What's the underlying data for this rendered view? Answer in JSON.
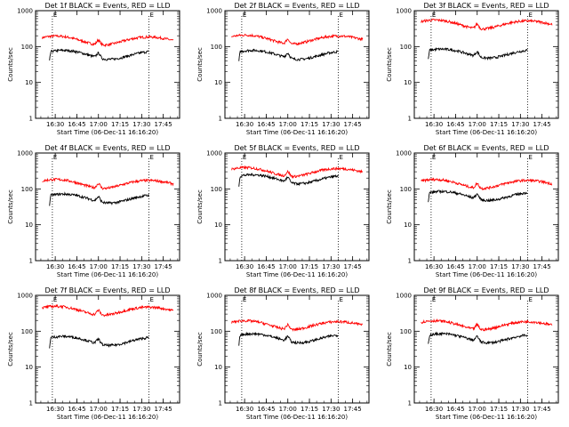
{
  "chart_data": [
    {
      "type": "line",
      "title": "Det 1f BLACK = Events, RED = LLD",
      "xlabel": "Start Time (06-Dec-11 16:16:20)",
      "ylabel": "Counts/sec",
      "x_ticks": [
        "16:30",
        "16:45",
        "17:00",
        "17:15",
        "17:30",
        "17:45"
      ],
      "y_ticks": [
        "1",
        "10",
        "100",
        "1000"
      ],
      "ylim": [
        1,
        1000
      ],
      "yscale": "log",
      "marker_labels": [
        "E",
        "E"
      ],
      "series": [
        {
          "color": "#ff0000",
          "level": 150,
          "start": "16:21",
          "end": "17:52"
        },
        {
          "color": "#000000",
          "level": 60,
          "start": "16:26",
          "end": "17:35"
        }
      ]
    },
    {
      "type": "line",
      "title": "Det 2f BLACK = Events, RED = LLD",
      "xlabel": "Start Time (06-Dec-11 16:16:20)",
      "ylabel": "Counts/sec",
      "x_ticks": [
        "16:30",
        "16:45",
        "17:00",
        "17:15",
        "17:30",
        "17:45"
      ],
      "y_ticks": [
        "1",
        "10",
        "100",
        "1000"
      ],
      "ylim": [
        1,
        1000
      ],
      "yscale": "log",
      "marker_labels": [
        "E",
        "E"
      ],
      "series": [
        {
          "color": "#ff0000",
          "level": 160,
          "start": "16:21",
          "end": "17:52"
        },
        {
          "color": "#000000",
          "level": 60,
          "start": "16:26",
          "end": "17:35"
        }
      ]
    },
    {
      "type": "line",
      "title": "Det 3f BLACK = Events, RED = LLD",
      "xlabel": "Start Time (06-Dec-11 16:16:20)",
      "ylabel": "Counts/sec",
      "x_ticks": [
        "16:30",
        "16:45",
        "17:00",
        "17:15",
        "17:30",
        "17:45"
      ],
      "y_ticks": [
        "1",
        "10",
        "100",
        "1000"
      ],
      "ylim": [
        1,
        1000
      ],
      "yscale": "log",
      "marker_labels": [
        "E",
        "E"
      ],
      "series": [
        {
          "color": "#ff0000",
          "level": 420,
          "start": "16:21",
          "end": "17:52"
        },
        {
          "color": "#000000",
          "level": 65,
          "start": "16:26",
          "end": "17:35"
        }
      ]
    },
    {
      "type": "line",
      "title": "Det 4f BLACK = Events, RED = LLD",
      "xlabel": "Start Time (06-Dec-11 16:16:20)",
      "ylabel": "Counts/sec",
      "x_ticks": [
        "16:30",
        "16:45",
        "17:00",
        "17:15",
        "17:30",
        "17:45"
      ],
      "y_ticks": [
        "1",
        "10",
        "100",
        "1000"
      ],
      "ylim": [
        1,
        1000
      ],
      "yscale": "log",
      "marker_labels": [
        "E",
        "E"
      ],
      "series": [
        {
          "color": "#ff0000",
          "level": 140,
          "start": "16:21",
          "end": "17:52"
        },
        {
          "color": "#000000",
          "level": 55,
          "start": "16:26",
          "end": "17:35"
        }
      ]
    },
    {
      "type": "line",
      "title": "Det 5f BLACK = Events, RED = LLD",
      "xlabel": "Start Time (06-Dec-11 16:16:20)",
      "ylabel": "Counts/sec",
      "x_ticks": [
        "16:30",
        "16:45",
        "17:00",
        "17:15",
        "17:30",
        "17:45"
      ],
      "y_ticks": [
        "1",
        "10",
        "100",
        "1000"
      ],
      "ylim": [
        1,
        1000
      ],
      "yscale": "log",
      "marker_labels": [
        "E",
        "E"
      ],
      "series": [
        {
          "color": "#ff0000",
          "level": 300,
          "start": "16:21",
          "end": "17:52"
        },
        {
          "color": "#000000",
          "level": 190,
          "start": "16:26",
          "end": "17:35"
        }
      ]
    },
    {
      "type": "line",
      "title": "Det 6f BLACK = Events, RED = LLD",
      "xlabel": "Start Time (06-Dec-11 16:16:20)",
      "ylabel": "Counts/sec",
      "x_ticks": [
        "16:30",
        "16:45",
        "17:00",
        "17:15",
        "17:30",
        "17:45"
      ],
      "y_ticks": [
        "1",
        "10",
        "100",
        "1000"
      ],
      "ylim": [
        1,
        1000
      ],
      "yscale": "log",
      "marker_labels": [
        "E",
        "E"
      ],
      "series": [
        {
          "color": "#ff0000",
          "level": 140,
          "start": "16:21",
          "end": "17:52"
        },
        {
          "color": "#000000",
          "level": 65,
          "start": "16:26",
          "end": "17:35"
        }
      ]
    },
    {
      "type": "line",
      "title": "Det 7f BLACK = Events, RED = LLD",
      "xlabel": "Start Time (06-Dec-11 16:16:20)",
      "ylabel": "Counts/sec",
      "x_ticks": [
        "16:30",
        "16:45",
        "17:00",
        "17:15",
        "17:30",
        "17:45"
      ],
      "y_ticks": [
        "1",
        "10",
        "100",
        "1000"
      ],
      "ylim": [
        1,
        1000
      ],
      "yscale": "log",
      "marker_labels": [
        "E",
        "E"
      ],
      "series": [
        {
          "color": "#ff0000",
          "level": 380,
          "start": "16:21",
          "end": "17:52"
        },
        {
          "color": "#000000",
          "level": 55,
          "start": "16:26",
          "end": "17:35"
        }
      ]
    },
    {
      "type": "line",
      "title": "Det 8f BLACK = Events, RED = LLD",
      "xlabel": "Start Time (06-Dec-11 16:16:20)",
      "ylabel": "Counts/sec",
      "x_ticks": [
        "16:30",
        "16:45",
        "17:00",
        "17:15",
        "17:30",
        "17:45"
      ],
      "y_ticks": [
        "1",
        "10",
        "100",
        "1000"
      ],
      "ylim": [
        1,
        1000
      ],
      "yscale": "log",
      "marker_labels": [
        "E",
        "E"
      ],
      "series": [
        {
          "color": "#ff0000",
          "level": 150,
          "start": "16:21",
          "end": "17:52"
        },
        {
          "color": "#000000",
          "level": 65,
          "start": "16:26",
          "end": "17:35"
        }
      ]
    },
    {
      "type": "line",
      "title": "Det 9f BLACK = Events, RED = LLD",
      "xlabel": "Start Time (06-Dec-11 16:16:20)",
      "ylabel": "Counts/sec",
      "x_ticks": [
        "16:30",
        "16:45",
        "17:00",
        "17:15",
        "17:30",
        "17:45"
      ],
      "y_ticks": [
        "1",
        "10",
        "100",
        "1000"
      ],
      "ylim": [
        1,
        1000
      ],
      "yscale": "log",
      "marker_labels": [
        "E",
        "E"
      ],
      "series": [
        {
          "color": "#ff0000",
          "level": 150,
          "start": "16:21",
          "end": "17:52"
        },
        {
          "color": "#000000",
          "level": 65,
          "start": "16:26",
          "end": "17:35"
        }
      ]
    }
  ]
}
